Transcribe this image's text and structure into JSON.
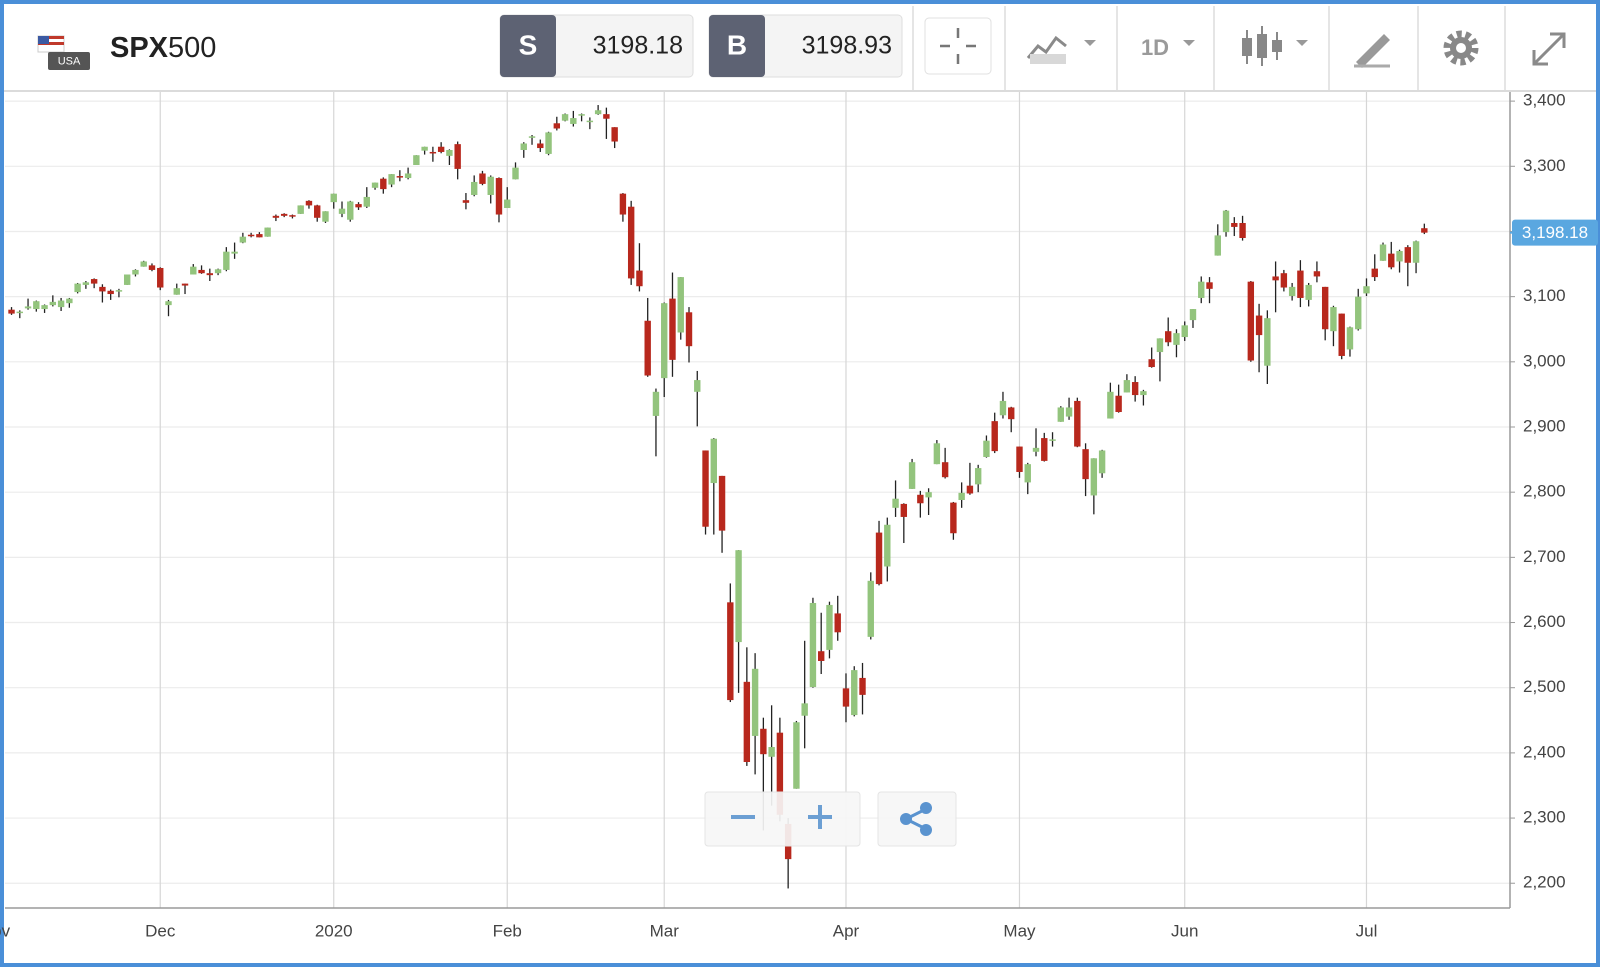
{
  "header": {
    "flag_text": "USA",
    "symbol_main": "SPX",
    "symbol_sub": "500",
    "sell": {
      "label": "S",
      "price": "3198.18"
    },
    "buy": {
      "label": "B",
      "price": "3198.93"
    },
    "timeframe": "1D"
  },
  "chart_data": {
    "type": "candlestick",
    "up_color": "#93c47d",
    "down_color": "#b8281d",
    "ylim": [
      2162,
      3414
    ],
    "yticks": [
      {
        "value": 2200,
        "label": "2,200"
      },
      {
        "value": 2300,
        "label": "2,300"
      },
      {
        "value": 2400,
        "label": "2,400"
      },
      {
        "value": 2500,
        "label": "2,500"
      },
      {
        "value": 2600,
        "label": "2,600"
      },
      {
        "value": 2700,
        "label": "2,700"
      },
      {
        "value": 2800,
        "label": "2,800"
      },
      {
        "value": 2900,
        "label": "2,900"
      },
      {
        "value": 3000,
        "label": "3,000"
      },
      {
        "value": 3100,
        "label": "3,100"
      },
      {
        "value": 3200,
        "label": "3,200"
      },
      {
        "value": 3300,
        "label": "3,300"
      },
      {
        "value": 3400,
        "label": "3,400"
      }
    ],
    "grid": true,
    "last_price": {
      "value": 3198.18,
      "label": "3,198.18"
    },
    "categories": [
      "Nov",
      null,
      null,
      null,
      null,
      null,
      null,
      null,
      null,
      null,
      null,
      null,
      null,
      null,
      null,
      null,
      null,
      null,
      null,
      null,
      "Dec",
      null,
      null,
      null,
      null,
      null,
      null,
      null,
      null,
      null,
      null,
      null,
      null,
      null,
      null,
      null,
      null,
      null,
      null,
      null,
      null,
      "2020",
      null,
      null,
      null,
      null,
      null,
      null,
      null,
      null,
      null,
      null,
      null,
      null,
      null,
      null,
      null,
      null,
      null,
      null,
      null,
      null,
      "Feb",
      null,
      null,
      null,
      null,
      null,
      null,
      null,
      null,
      null,
      null,
      null,
      null,
      null,
      null,
      null,
      null,
      null,
      null,
      "Mar",
      null,
      null,
      null,
      null,
      null,
      null,
      null,
      null,
      null,
      null,
      null,
      null,
      null,
      null,
      null,
      null,
      null,
      null,
      null,
      null,
      null,
      "Apr",
      null,
      null,
      null,
      null,
      null,
      null,
      null,
      null,
      null,
      null,
      null,
      null,
      null,
      null,
      null,
      null,
      null,
      null,
      null,
      null,
      "May",
      null,
      null,
      null,
      null,
      null,
      null,
      null,
      null,
      null,
      null,
      null,
      null,
      null,
      null,
      null,
      null,
      null,
      null,
      null,
      "Jun",
      null,
      null,
      null,
      null,
      null,
      null,
      null,
      null,
      null,
      null,
      null,
      null,
      null,
      null,
      null,
      null,
      null,
      null,
      null,
      null,
      null,
      "Jul",
      null,
      null,
      null,
      null,
      null,
      null,
      null
    ],
    "values": [
      null,
      null,
      [
        3080,
        3084,
        3072,
        3074
      ],
      [
        3075,
        3079,
        3067,
        3077
      ],
      [
        3082,
        3097,
        3080,
        3085
      ],
      [
        3081,
        3094,
        3077,
        3093
      ],
      [
        3081,
        3088,
        3075,
        3087
      ],
      [
        3087,
        3102,
        3085,
        3092
      ],
      [
        3084,
        3098,
        3078,
        3094
      ],
      [
        3090,
        3098,
        3083,
        3097
      ],
      [
        3107,
        3121,
        3105,
        3120
      ],
      [
        3118,
        3124,
        3112,
        3122
      ],
      [
        3127,
        3128,
        3113,
        3120
      ],
      [
        3115,
        3119,
        3091,
        3108
      ],
      [
        3109,
        3111,
        3095,
        3104
      ],
      [
        3108,
        3112,
        3099,
        3110
      ],
      [
        3118,
        3134,
        3118,
        3134
      ],
      [
        3134,
        3142,
        3131,
        3141
      ],
      [
        3146,
        3155,
        3146,
        3154
      ],
      [
        3148,
        3151,
        3139,
        3141
      ],
      [
        3144,
        3145,
        3110,
        3114
      ],
      [
        3087,
        3095,
        3070,
        3093
      ],
      [
        3103,
        3120,
        3103,
        3113
      ],
      [
        3120,
        3120,
        3104,
        3117
      ],
      [
        3134,
        3150,
        3134,
        3146
      ],
      [
        3141,
        3148,
        3135,
        3136
      ],
      [
        3136,
        3143,
        3124,
        3133
      ],
      [
        3136,
        3143,
        3133,
        3142
      ],
      [
        3141,
        3176,
        3139,
        3169
      ],
      [
        3166,
        3183,
        3158,
        3169
      ],
      [
        3183,
        3198,
        3182,
        3192
      ],
      [
        3195,
        3198,
        3191,
        3193
      ],
      [
        3196,
        3199,
        3191,
        3191
      ],
      [
        3192,
        3206,
        3192,
        3206
      ],
      [
        3224,
        3226,
        3216,
        3221
      ],
      [
        3227,
        3228,
        3222,
        3224
      ],
      [
        3225,
        3226,
        3220,
        3223
      ],
      [
        3227,
        3240,
        3227,
        3240
      ],
      [
        3247,
        3248,
        3235,
        3240
      ],
      [
        3240,
        3241,
        3215,
        3221
      ],
      [
        3215,
        3231,
        3213,
        3231
      ],
      [
        3245,
        3258,
        3235,
        3258
      ],
      [
        3227,
        3246,
        3222,
        3235
      ],
      [
        3218,
        3247,
        3215,
        3246
      ],
      [
        3242,
        3245,
        3233,
        3237
      ],
      [
        3238,
        3268,
        3236,
        3253
      ],
      [
        3267,
        3275,
        3264,
        3275
      ],
      [
        3281,
        3283,
        3258,
        3265
      ],
      [
        3272,
        3288,
        3268,
        3288
      ],
      [
        3285,
        3294,
        3277,
        3283
      ],
      [
        3282,
        3298,
        3280,
        3289
      ],
      [
        3302,
        3317,
        3302,
        3317
      ],
      [
        3324,
        3330,
        3318,
        3330
      ],
      [
        3322,
        3330,
        3307,
        3321
      ],
      [
        3330,
        3337,
        3320,
        3322
      ],
      [
        3316,
        3326,
        3302,
        3325
      ],
      [
        3334,
        3338,
        3280,
        3296
      ],
      [
        3248,
        3259,
        3234,
        3244
      ],
      [
        3256,
        3286,
        3254,
        3276
      ],
      [
        3289,
        3293,
        3271,
        3273
      ],
      [
        3256,
        3286,
        3243,
        3284
      ],
      [
        3282,
        3283,
        3214,
        3226
      ],
      [
        3236,
        3268,
        3236,
        3249
      ],
      [
        3280,
        3306,
        3280,
        3298
      ],
      [
        3325,
        3337,
        3313,
        3335
      ],
      [
        3344,
        3348,
        3333,
        3346
      ],
      [
        3335,
        3341,
        3322,
        3328
      ],
      [
        3319,
        3353,
        3317,
        3352
      ],
      [
        3366,
        3376,
        3355,
        3358
      ],
      [
        3370,
        3381,
        3369,
        3380
      ],
      [
        3365,
        3385,
        3361,
        3374
      ],
      [
        3378,
        3381,
        3369,
        3380
      ],
      [
        3370,
        3375,
        3357,
        3370
      ],
      [
        3380,
        3394,
        3379,
        3386
      ],
      [
        3380,
        3390,
        3342,
        3373
      ],
      [
        3360,
        3360,
        3328,
        3338
      ],
      [
        3258,
        3259,
        3215,
        3226
      ],
      [
        3238,
        3247,
        3118,
        3128
      ],
      [
        3140,
        3182,
        3108,
        3116
      ],
      [
        3063,
        3098,
        2977,
        2979
      ],
      [
        2917,
        2959,
        2855,
        2954
      ],
      [
        2975,
        3091,
        2946,
        3090
      ],
      [
        3097,
        3137,
        2977,
        3003
      ],
      [
        3045,
        3130,
        3034,
        3130
      ],
      [
        3076,
        3084,
        2999,
        3024
      ],
      [
        2954,
        2986,
        2901,
        2972
      ],
      [
        2864,
        2864,
        2735,
        2747
      ],
      [
        2814,
        2883,
        2735,
        2882
      ],
      [
        2825,
        2825,
        2707,
        2741
      ],
      [
        2631,
        2660,
        2478,
        2481
      ],
      [
        2570,
        2711,
        2492,
        2711
      ],
      [
        2509,
        2562,
        2380,
        2386
      ],
      [
        2426,
        2553,
        2367,
        2529
      ],
      [
        2437,
        2454,
        2281,
        2398
      ],
      [
        2394,
        2473,
        2319,
        2409
      ],
      [
        2431,
        2454,
        2295,
        2305
      ],
      [
        2291,
        2300,
        2192,
        2237
      ],
      [
        2345,
        2449,
        2345,
        2447
      ],
      [
        2457,
        2572,
        2407,
        2476
      ],
      [
        2501,
        2638,
        2500,
        2630
      ],
      [
        2556,
        2615,
        2521,
        2541
      ],
      [
        2558,
        2632,
        2545,
        2627
      ],
      [
        2614,
        2641,
        2572,
        2585
      ],
      [
        2499,
        2522,
        2447,
        2471
      ],
      [
        2458,
        2533,
        2456,
        2527
      ],
      [
        2515,
        2538,
        2459,
        2489
      ],
      [
        2578,
        2677,
        2574,
        2664
      ],
      [
        2738,
        2756,
        2657,
        2659
      ],
      [
        2686,
        2761,
        2663,
        2750
      ],
      [
        2776,
        2818,
        2762,
        2790
      ],
      [
        2782,
        2783,
        2722,
        2762
      ],
      [
        2805,
        2851,
        2805,
        2846
      ],
      [
        2796,
        2802,
        2761,
        2783
      ],
      [
        2792,
        2806,
        2765,
        2800
      ],
      [
        2843,
        2880,
        2843,
        2875
      ],
      [
        2846,
        2868,
        2821,
        2823
      ],
      [
        2784,
        2785,
        2727,
        2737
      ],
      [
        2788,
        2815,
        2776,
        2799
      ],
      [
        2810,
        2845,
        2796,
        2798
      ],
      [
        2812,
        2842,
        2800,
        2837
      ],
      [
        2854,
        2887,
        2853,
        2879
      ],
      [
        2909,
        2922,
        2860,
        2863
      ],
      [
        2918,
        2954,
        2913,
        2940
      ],
      [
        2930,
        2931,
        2892,
        2912
      ],
      [
        2870,
        2870,
        2822,
        2831
      ],
      [
        2815,
        2845,
        2797,
        2843
      ],
      [
        2862,
        2898,
        2855,
        2868
      ],
      [
        2883,
        2891,
        2847,
        2848
      ],
      [
        2879,
        2892,
        2870,
        2881
      ],
      [
        2908,
        2932,
        2908,
        2930
      ],
      [
        2916,
        2945,
        2911,
        2930
      ],
      [
        2940,
        2945,
        2869,
        2870
      ],
      [
        2866,
        2875,
        2794,
        2820
      ],
      [
        2795,
        2852,
        2766,
        2852
      ],
      [
        2829,
        2865,
        2822,
        2864
      ],
      [
        2913,
        2968,
        2913,
        2954
      ],
      [
        2948,
        2965,
        2922,
        2923
      ],
      [
        2953,
        2981,
        2953,
        2972
      ],
      [
        2969,
        2978,
        2939,
        2949
      ],
      [
        2949,
        2957,
        2933,
        2955
      ],
      [
        3004,
        3022,
        2991,
        2992
      ],
      [
        3015,
        3036,
        2970,
        3036
      ],
      [
        3047,
        3068,
        3024,
        3030
      ],
      [
        3026,
        3050,
        3007,
        3044
      ],
      [
        3038,
        3062,
        3032,
        3056
      ],
      [
        3064,
        3081,
        3052,
        3081
      ],
      [
        3098,
        3131,
        3090,
        3123
      ],
      [
        3122,
        3130,
        3090,
        3112
      ],
      [
        3163,
        3211,
        3163,
        3194
      ],
      [
        3199,
        3233,
        3192,
        3232
      ],
      [
        3213,
        3222,
        3193,
        3207
      ],
      [
        3213,
        3224,
        3186,
        3190
      ],
      [
        3123,
        3124,
        3000,
        3002
      ],
      [
        3071,
        3089,
        2984,
        3041
      ],
      [
        2994,
        3079,
        2966,
        3067
      ],
      [
        3131,
        3154,
        3076,
        3125
      ],
      [
        3136,
        3141,
        3108,
        3114
      ],
      [
        3101,
        3121,
        3094,
        3115
      ],
      [
        3140,
        3156,
        3084,
        3098
      ],
      [
        3095,
        3121,
        3085,
        3118
      ],
      [
        3139,
        3154,
        3122,
        3131
      ],
      [
        3115,
        3115,
        3033,
        3050
      ],
      [
        3047,
        3086,
        3024,
        3084
      ],
      [
        3074,
        3074,
        3004,
        3009
      ],
      [
        3019,
        3054,
        3008,
        3053
      ],
      [
        3050,
        3112,
        3048,
        3100
      ],
      [
        3105,
        3128,
        3101,
        3116
      ],
      [
        3143,
        3165,
        3124,
        3130
      ],
      [
        3155,
        3183,
        3155,
        3180
      ],
      [
        3166,
        3184,
        3142,
        3145
      ],
      [
        3154,
        3172,
        3137,
        3170
      ],
      [
        3176,
        3179,
        3116,
        3152
      ],
      [
        3152,
        3186,
        3136,
        3185
      ],
      [
        3205,
        3212,
        3196,
        3198.18
      ]
    ]
  }
}
